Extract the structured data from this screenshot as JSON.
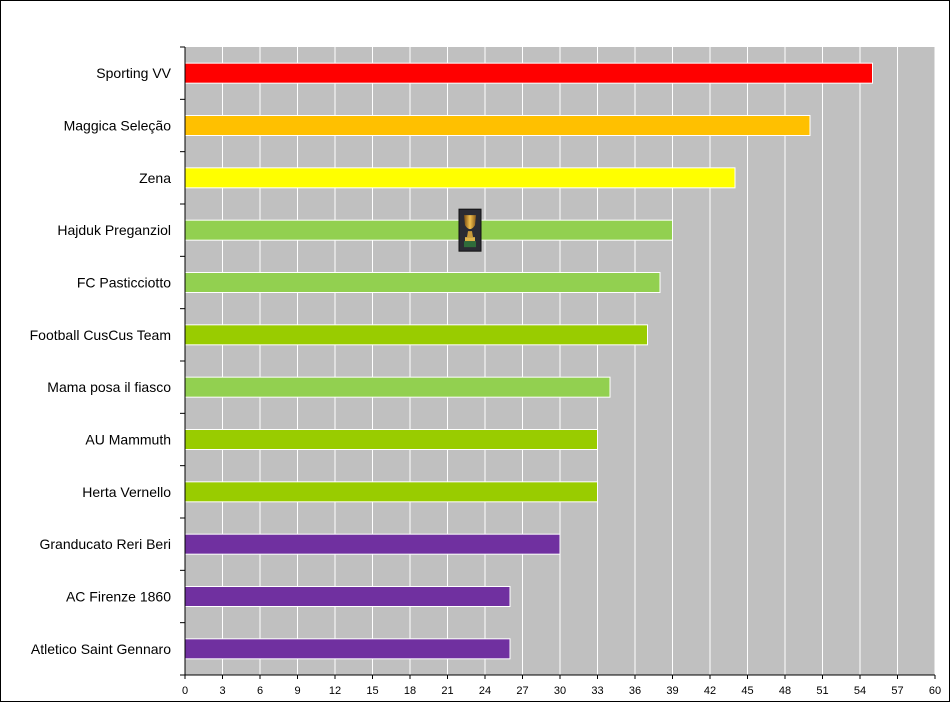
{
  "chart_data": {
    "type": "bar",
    "orientation": "horizontal",
    "categories": [
      "Sporting VV",
      "Maggica Seleção",
      "Zena",
      "Hajduk Preganziol",
      "FC Pasticciotto",
      "Football CusCus Team",
      "Mama posa il fiasco",
      "AU Mammuth",
      "Herta Vernello",
      "Granducato Reri Beri",
      "AC Firenze 1860",
      "Atletico Saint Gennaro"
    ],
    "values": [
      55,
      50,
      44,
      39,
      38,
      37,
      34,
      33,
      33,
      30,
      26,
      26
    ],
    "bar_colors": [
      "#ff0000",
      "#ffc000",
      "#ffff00",
      "#92d050",
      "#92d050",
      "#99cc00",
      "#92d050",
      "#99cc00",
      "#99cc00",
      "#7030a0",
      "#7030a0",
      "#7030a0"
    ],
    "xlim": [
      0,
      60
    ],
    "xticks": [
      0,
      3,
      6,
      9,
      12,
      15,
      18,
      21,
      24,
      27,
      30,
      33,
      36,
      39,
      42,
      45,
      48,
      51,
      54,
      57,
      60
    ],
    "grid": true,
    "plot_background": "#c0c0c0",
    "gridline_color": "#ffffff",
    "annotations": [
      {
        "icon": "trophy-icon",
        "category": "Hajduk Preganziol",
        "x": 22.8
      }
    ]
  }
}
